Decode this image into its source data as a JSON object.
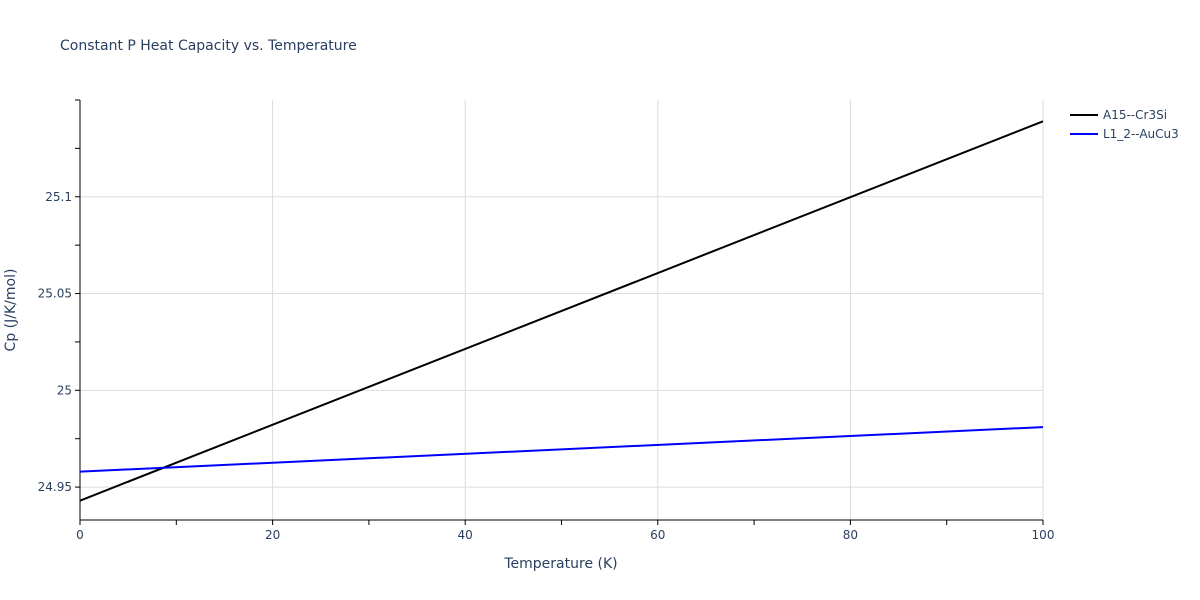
{
  "colors": {
    "text": "#2a3f5f",
    "grid": "#dddddd",
    "axis": "#000000"
  },
  "chart_data": {
    "type": "line",
    "title": "Constant P Heat Capacity vs. Temperature",
    "xlabel": "Temperature (K)",
    "ylabel": "Cp (J/K/mol)",
    "xlim": [
      0,
      100
    ],
    "ylim": [
      24.933,
      25.15
    ],
    "xticks": [
      0,
      20,
      40,
      60,
      80,
      100
    ],
    "xtick_labels": [
      "0",
      "20",
      "40",
      "60",
      "80",
      "100"
    ],
    "yticks": [
      24.95,
      25,
      25.05,
      25.1
    ],
    "ytick_labels": [
      "24.95",
      "25",
      "25.05",
      "25.1"
    ],
    "grid": true,
    "legend_position": "top-right",
    "series": [
      {
        "name": "A15--Cr3Si",
        "color": "#000000",
        "x": [
          0,
          100
        ],
        "y": [
          24.943,
          25.139
        ]
      },
      {
        "name": "L1_2--AuCu3",
        "color": "#0000ff",
        "x": [
          0,
          100
        ],
        "y": [
          24.958,
          24.981
        ]
      }
    ]
  }
}
